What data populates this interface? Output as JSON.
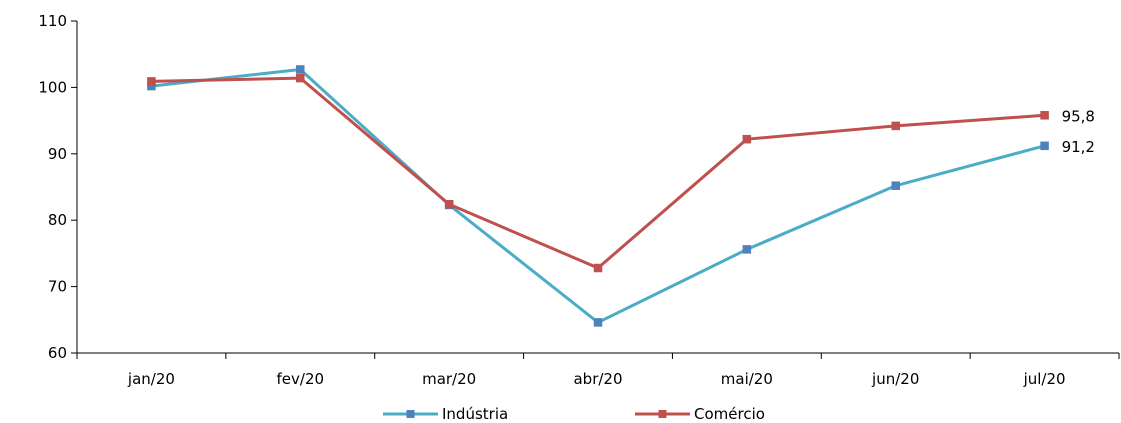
{
  "chart_data": {
    "type": "line",
    "title": "",
    "xlabel": "",
    "ylabel": "",
    "categories": [
      "jan/20",
      "fev/20",
      "mar/20",
      "abr/20",
      "mai/20",
      "jun/20",
      "jul/20"
    ],
    "ylim": [
      60,
      110
    ],
    "yticks": [
      60,
      70,
      80,
      90,
      100,
      110
    ],
    "grid": false,
    "legend_position": "bottom",
    "series": [
      {
        "name": "Indústria",
        "color": "#4bacc6",
        "marker_color": "#4f81bd",
        "values": [
          100.2,
          102.7,
          82.3,
          64.6,
          75.6,
          85.2,
          91.2
        ],
        "end_label": "91,2"
      },
      {
        "name": "Comércio",
        "color": "#c0504d",
        "marker_color": "#c0504d",
        "values": [
          100.9,
          101.4,
          82.4,
          72.8,
          92.2,
          94.2,
          95.8
        ],
        "end_label": "95,8"
      }
    ]
  }
}
